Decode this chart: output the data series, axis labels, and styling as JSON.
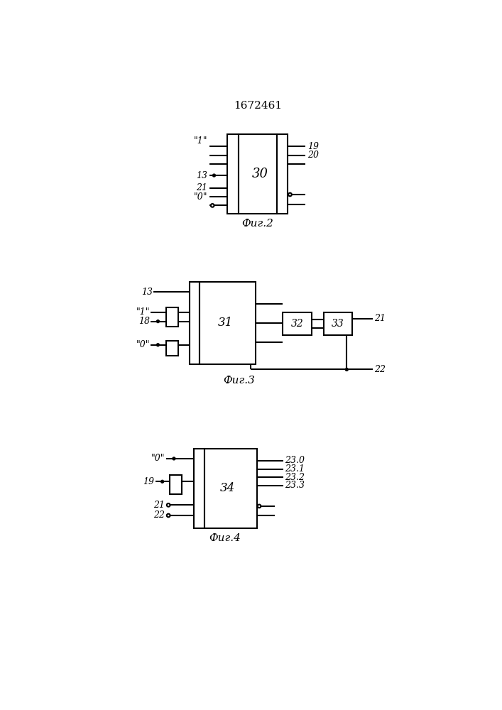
{
  "title": "1672461",
  "bg_color": "#ffffff",
  "line_color": "#000000",
  "fig2_caption": "Фиг.2",
  "fig3_caption": "Фиг.3",
  "fig4_caption": "Фиг.4",
  "fig2_block": "30",
  "fig3_block1": "31",
  "fig3_block2": "32",
  "fig3_block3": "33",
  "fig4_block": "34"
}
